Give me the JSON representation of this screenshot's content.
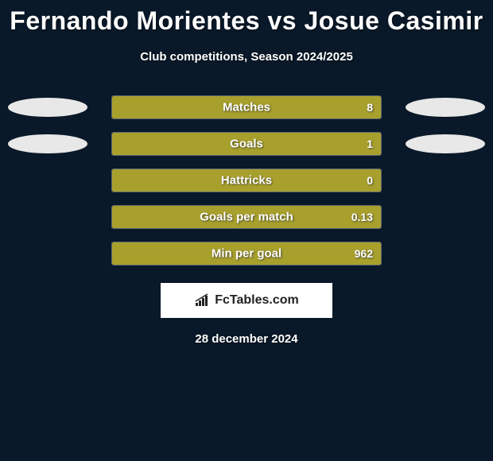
{
  "background_color": "#0a1929",
  "title": "Fernando Morientes vs Josue Casimir",
  "title_fontsize": 32,
  "title_color": "#ffffff",
  "subtitle": "Club competitions, Season 2024/2025",
  "subtitle_fontsize": 15,
  "subtitle_color": "#ffffff",
  "ellipse_color": "#e8e8e8",
  "bar_fill_color": "#a8a02c",
  "bar_border_color": "rgba(255,255,255,0.35)",
  "bar_track_width": 340,
  "stats": [
    {
      "label": "Matches",
      "value": "8",
      "fill_pct": 100,
      "show_left_ellipse": true,
      "show_right_ellipse": true
    },
    {
      "label": "Goals",
      "value": "1",
      "fill_pct": 100,
      "show_left_ellipse": true,
      "show_right_ellipse": true
    },
    {
      "label": "Hattricks",
      "value": "0",
      "fill_pct": 100,
      "show_left_ellipse": false,
      "show_right_ellipse": false
    },
    {
      "label": "Goals per match",
      "value": "0.13",
      "fill_pct": 100,
      "show_left_ellipse": false,
      "show_right_ellipse": false
    },
    {
      "label": "Min per goal",
      "value": "962",
      "fill_pct": 100,
      "show_left_ellipse": false,
      "show_right_ellipse": false
    }
  ],
  "brand": "FcTables.com",
  "brand_box_bg": "#ffffff",
  "brand_text_color": "#222222",
  "date": "28 december 2024",
  "date_color": "#ffffff"
}
